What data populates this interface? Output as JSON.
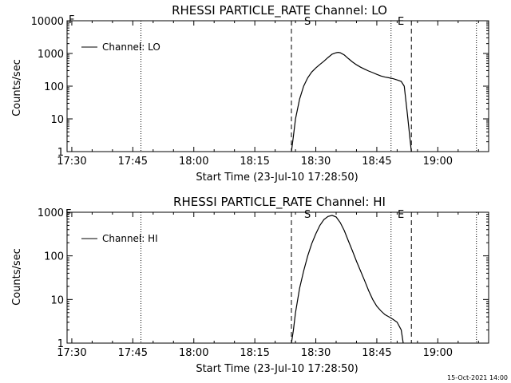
{
  "footer": {
    "timestamp": "15-Oct-2021 14:00"
  },
  "markers": {
    "start_label": "S",
    "end_label": "E",
    "flare_label": "F"
  },
  "colors": {
    "background": "#ffffff",
    "foreground": "#000000"
  },
  "chart_data": [
    {
      "type": "line",
      "title": "RHESSI PARTICLE_RATE Channel: LO",
      "xlabel": "Start Time (23-Jul-10 17:28:50)",
      "ylabel": "Counts/sec",
      "yscale": "log",
      "xlim": [
        "17:28:50",
        "19:12:30"
      ],
      "ylim": [
        1,
        10000
      ],
      "x_ticks": [
        "17:30",
        "17:45",
        "18:00",
        "18:15",
        "18:30",
        "18:45",
        "19:00"
      ],
      "y_ticks": [
        "1",
        "10",
        "100",
        "1000",
        "10000"
      ],
      "legend": {
        "position": "top-left",
        "entries": [
          "Channel: LO"
        ]
      },
      "grid": false,
      "vlines": {
        "dotted": [
          "17:47:00",
          "18:48:30",
          "19:09:30"
        ],
        "dashed": [
          "18:24:00",
          "18:53:30"
        ]
      },
      "series": [
        {
          "name": "Channel: LO",
          "x": [
            "18:24:00",
            "18:24:30",
            "18:25:00",
            "18:26:00",
            "18:27:00",
            "18:28:00",
            "18:29:00",
            "18:30:00",
            "18:31:00",
            "18:32:00",
            "18:33:00",
            "18:34:00",
            "18:35:00",
            "18:35:30",
            "18:36:00",
            "18:37:00",
            "18:38:00",
            "18:39:00",
            "18:40:00",
            "18:41:00",
            "18:42:00",
            "18:43:00",
            "18:44:00",
            "18:45:00",
            "18:46:00",
            "18:47:00",
            "18:48:00",
            "18:49:00",
            "18:50:00",
            "18:51:00",
            "18:51:45",
            "18:52:30",
            "18:53:30"
          ],
          "values": [
            1,
            3,
            10,
            40,
            100,
            180,
            270,
            360,
            460,
            580,
            750,
            950,
            1050,
            1080,
            1050,
            900,
            700,
            550,
            450,
            380,
            330,
            290,
            260,
            230,
            205,
            190,
            180,
            170,
            155,
            140,
            100,
            15,
            1
          ]
        }
      ]
    },
    {
      "type": "line",
      "title": "RHESSI PARTICLE_RATE Channel: HI",
      "xlabel": "Start Time (23-Jul-10 17:28:50)",
      "ylabel": "Counts/sec",
      "yscale": "log",
      "xlim": [
        "17:28:50",
        "19:12:30"
      ],
      "ylim": [
        1,
        1000
      ],
      "x_ticks": [
        "17:30",
        "17:45",
        "18:00",
        "18:15",
        "18:30",
        "18:45",
        "19:00"
      ],
      "y_ticks": [
        "1",
        "10",
        "100",
        "1000"
      ],
      "legend": {
        "position": "top-left",
        "entries": [
          "Channel: HI"
        ]
      },
      "grid": false,
      "vlines": {
        "dotted": [
          "17:47:00",
          "18:48:30",
          "19:09:30"
        ],
        "dashed": [
          "18:24:00",
          "18:53:30"
        ]
      },
      "series": [
        {
          "name": "Channel: HI",
          "x": [
            "18:24:00",
            "18:24:30",
            "18:25:00",
            "18:26:00",
            "18:27:00",
            "18:28:00",
            "18:29:00",
            "18:30:00",
            "18:31:00",
            "18:32:00",
            "18:33:00",
            "18:34:00",
            "18:35:00",
            "18:36:00",
            "18:37:00",
            "18:38:00",
            "18:39:00",
            "18:40:00",
            "18:41:00",
            "18:42:00",
            "18:43:00",
            "18:44:00",
            "18:45:00",
            "18:46:00",
            "18:47:00",
            "18:48:00",
            "18:49:00",
            "18:50:00",
            "18:51:00",
            "18:51:30"
          ],
          "values": [
            1,
            2,
            5,
            18,
            45,
            100,
            190,
            320,
            500,
            680,
            800,
            850,
            780,
            580,
            380,
            220,
            130,
            75,
            45,
            27,
            16,
            10,
            7,
            5.5,
            4.5,
            4,
            3.5,
            3,
            2,
            1
          ]
        }
      ]
    }
  ]
}
